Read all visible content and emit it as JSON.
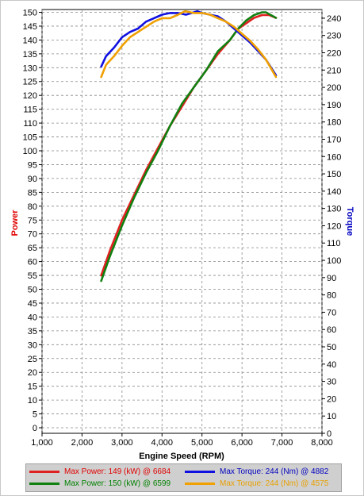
{
  "chart_data": {
    "type": "line",
    "xlabel": "Engine Speed (RPM)",
    "ylabel_left": "Power",
    "ylabel_right": "Torque",
    "xlim": [
      1000,
      8000
    ],
    "ylim_left": [
      -2,
      151
    ],
    "ylim_right": [
      0,
      245
    ],
    "x_ticks": [
      1000,
      2000,
      3000,
      4000,
      5000,
      6000,
      7000,
      8000
    ],
    "x_tick_labels": [
      "1,000",
      "2,000",
      "3,000",
      "4,000",
      "5,000",
      "6,000",
      "7,000",
      "8,000"
    ],
    "y_left_ticks": [
      0,
      5,
      10,
      15,
      20,
      25,
      30,
      35,
      40,
      45,
      50,
      55,
      60,
      65,
      70,
      75,
      80,
      85,
      90,
      95,
      100,
      105,
      110,
      115,
      120,
      125,
      130,
      135,
      140,
      145,
      150
    ],
    "y_right_ticks": [
      0,
      10,
      20,
      30,
      40,
      50,
      60,
      70,
      80,
      90,
      100,
      110,
      120,
      130,
      140,
      150,
      160,
      170,
      180,
      190,
      200,
      210,
      220,
      230,
      240
    ],
    "grid": true,
    "colors": {
      "power_label": "#e00000",
      "torque_label": "#0000c0",
      "legend_text_red": "#e00000",
      "legend_text_green": "#008000",
      "legend_text_blue": "#0000c0",
      "legend_text_orange": "#e8a000"
    },
    "series": [
      {
        "name": "Power red",
        "axis": "left",
        "color": "#e02020",
        "x": [
          2480,
          2700,
          3000,
          3300,
          3600,
          3900,
          4200,
          4500,
          4800,
          5100,
          5400,
          5700,
          5900,
          6100,
          6300,
          6500,
          6684,
          6850
        ],
        "y": [
          55,
          64,
          75,
          84,
          93,
          101,
          109,
          116,
          123,
          129,
          135,
          140,
          144,
          146,
          148,
          149,
          149,
          148
        ]
      },
      {
        "name": "Power green",
        "axis": "left",
        "color": "#108010",
        "x": [
          2480,
          2700,
          3000,
          3300,
          3600,
          3900,
          4200,
          4500,
          4800,
          5100,
          5400,
          5700,
          5900,
          6100,
          6300,
          6500,
          6599,
          6850
        ],
        "y": [
          53,
          62,
          73,
          83,
          92,
          100,
          109,
          117,
          123,
          129,
          136,
          140,
          144,
          147,
          149,
          150,
          150,
          148
        ]
      },
      {
        "name": "Torque blue",
        "axis": "right",
        "color": "#1010e0",
        "x": [
          2480,
          2600,
          2800,
          3000,
          3200,
          3400,
          3600,
          3800,
          4000,
          4200,
          4400,
          4600,
          4882,
          5000,
          5200,
          5400,
          5600,
          5800,
          6000,
          6200,
          6400,
          6600,
          6850
        ],
        "y": [
          212,
          218,
          223,
          229,
          232,
          234,
          238,
          240,
          242,
          243,
          243,
          242,
          244,
          243,
          242,
          241,
          238,
          234,
          230,
          226,
          221,
          216,
          207
        ]
      },
      {
        "name": "Torque orange",
        "axis": "right",
        "color": "#f0a000",
        "x": [
          2480,
          2600,
          2800,
          3000,
          3200,
          3400,
          3600,
          3800,
          4000,
          4200,
          4400,
          4575,
          4800,
          5000,
          5200,
          5400,
          5600,
          5800,
          6000,
          6200,
          6400,
          6600,
          6850
        ],
        "y": [
          206,
          213,
          218,
          224,
          229,
          232,
          235,
          238,
          240,
          240,
          242,
          244,
          243,
          243,
          242,
          240,
          238,
          235,
          231,
          227,
          222,
          216,
          206
        ]
      }
    ]
  },
  "legend": {
    "max_power_red": "Max Power: 149 (kW) @ 6684",
    "max_torque_blue": "Max Torque: 244 (Nm) @ 4882",
    "max_power_green": "Max Power: 150 (kW) @ 6599",
    "max_torque_orange": "Max Torque: 244 (Nm) @ 4575"
  }
}
